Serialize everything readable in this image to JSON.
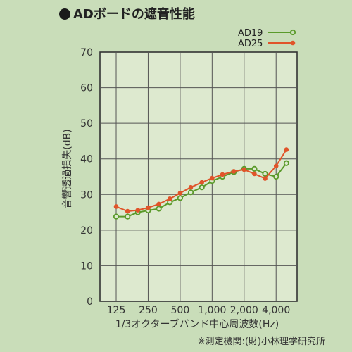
{
  "title": "ADボードの遮音性能",
  "footnote": "※測定機関:(財)小林理学研究所",
  "chart_data": {
    "type": "line",
    "title": "ADボードの遮音性能",
    "xlabel": "1/3オクターブバンド中心周波数(Hz)",
    "ylabel": "音響透過損失(dB)",
    "ylim": [
      0,
      70
    ],
    "yticks": [
      0,
      10,
      20,
      30,
      40,
      50,
      60,
      70
    ],
    "x_scale": "log",
    "xlim": [
      88,
      6300
    ],
    "xticks": [
      {
        "value": 125,
        "label": "125"
      },
      {
        "value": 250,
        "label": "250"
      },
      {
        "value": 500,
        "label": "500"
      },
      {
        "value": 1000,
        "label": "1,000"
      },
      {
        "value": 2000,
        "label": "2,000"
      },
      {
        "value": 4000,
        "label": "4,000"
      }
    ],
    "grid": true,
    "legend_position": "top-right",
    "x": [
      125,
      160,
      200,
      250,
      315,
      400,
      500,
      630,
      800,
      1000,
      1250,
      1600,
      2000,
      2500,
      3150,
      4000,
      5000
    ],
    "series": [
      {
        "name": "AD19",
        "color": "#5a9a2a",
        "marker": "open-circle",
        "values": [
          23.8,
          23.8,
          25,
          25.5,
          26,
          27.8,
          29,
          30.6,
          32,
          33.8,
          35,
          36.3,
          37.2,
          37.2,
          35.8,
          35,
          38.8
        ]
      },
      {
        "name": "AD25",
        "color": "#e0542a",
        "marker": "filled-circle",
        "values": [
          26.6,
          25.3,
          25.6,
          26.3,
          27.3,
          28.8,
          30.4,
          32,
          33.4,
          34.6,
          35.6,
          36.5,
          37,
          35.8,
          34.5,
          38,
          42.6
        ]
      }
    ]
  }
}
